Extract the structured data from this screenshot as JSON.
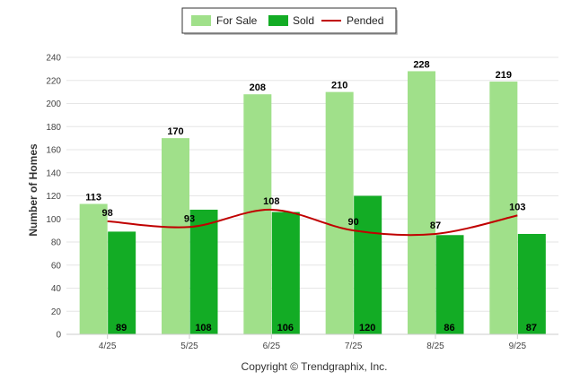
{
  "chart_data": {
    "type": "bar",
    "categories": [
      "4/25",
      "5/25",
      "6/25",
      "7/25",
      "8/25",
      "9/25"
    ],
    "series": [
      {
        "name": "For Sale",
        "kind": "bar",
        "color": "#a0e08a",
        "values": [
          113,
          170,
          208,
          210,
          228,
          219
        ]
      },
      {
        "name": "Sold",
        "kind": "bar",
        "color": "#13ac25",
        "values": [
          89,
          108,
          106,
          120,
          86,
          87
        ]
      },
      {
        "name": "Pended",
        "kind": "line",
        "color": "#c00000",
        "values": [
          98,
          93,
          108,
          90,
          87,
          103
        ]
      }
    ],
    "ylabel": "Number of Homes",
    "ylim": [
      0,
      240
    ],
    "yticks": [
      0,
      20,
      40,
      60,
      80,
      100,
      120,
      140,
      160,
      180,
      200,
      220,
      240
    ],
    "grid": true,
    "legend_position": "top-center"
  },
  "footer": {
    "copyright": "Copyright © Trendgraphix, Inc."
  }
}
